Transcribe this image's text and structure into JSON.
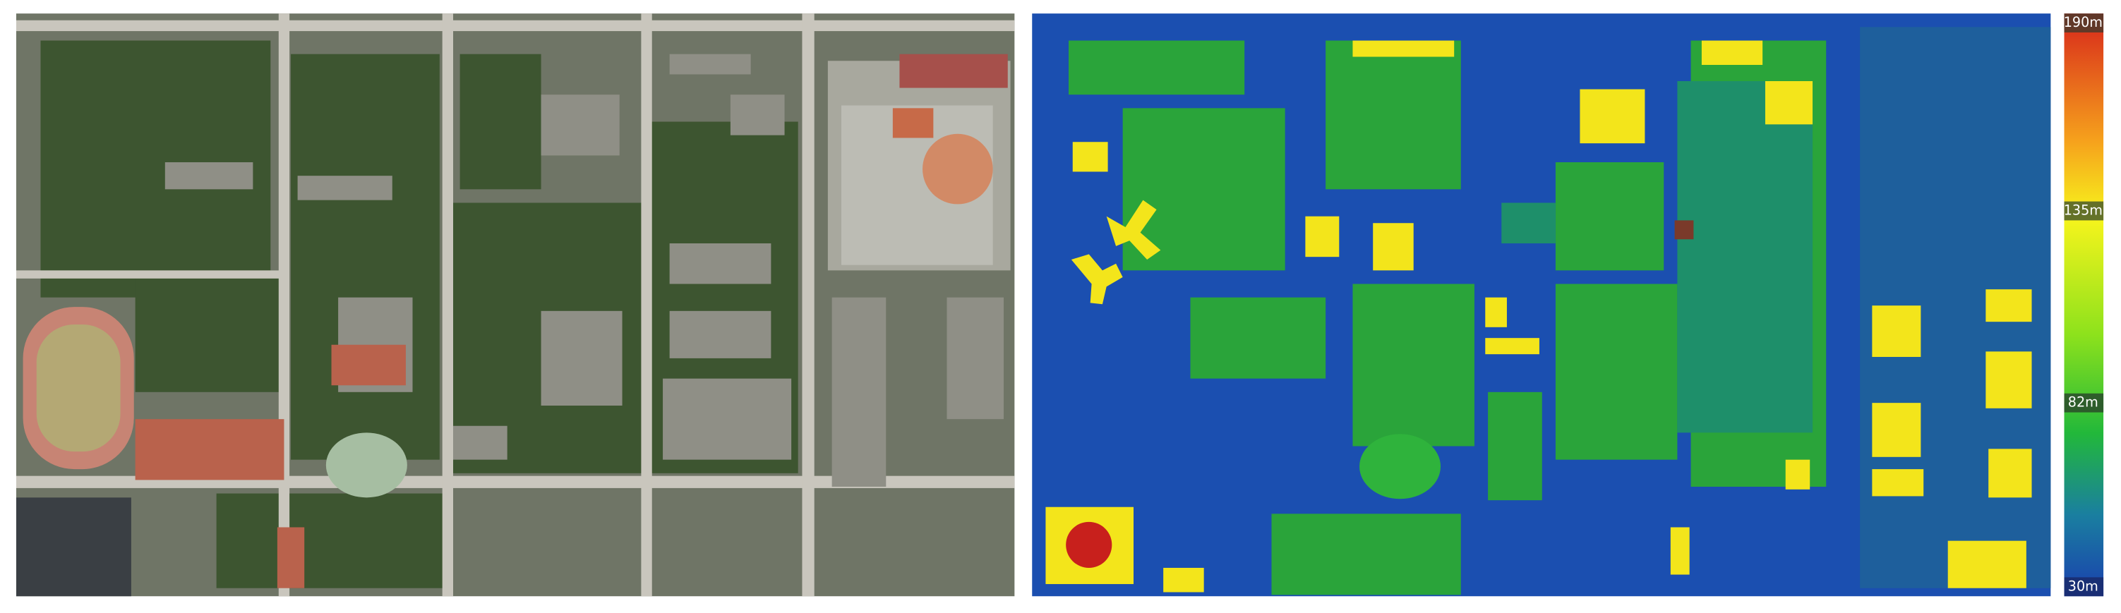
{
  "legend": {
    "labels": [
      "190m",
      "135m",
      "82m",
      "30m"
    ]
  }
}
